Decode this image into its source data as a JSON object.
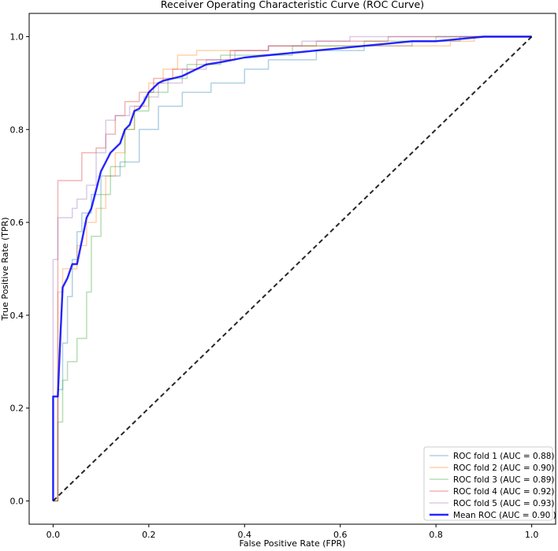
{
  "chart_data": {
    "type": "line",
    "title": "Receiver Operating Characteristic Curve (ROC Curve)",
    "xlabel": "False Positive Rate (FPR)",
    "ylabel": "True Positive Rate (TPR)",
    "xlim": [
      -0.05,
      1.05
    ],
    "ylim": [
      -0.05,
      1.05
    ],
    "xticks": [
      0.0,
      0.2,
      0.4,
      0.6,
      0.8,
      1.0
    ],
    "yticks": [
      0.0,
      0.2,
      0.4,
      0.6,
      0.8,
      1.0
    ],
    "xtick_labels": [
      "0.0",
      "0.2",
      "0.4",
      "0.6",
      "0.8",
      "1.0"
    ],
    "ytick_labels": [
      "0.0",
      "0.2",
      "0.4",
      "0.6",
      "0.8",
      "1.0"
    ],
    "grid": false,
    "legend_position": "lower-right",
    "series": [
      {
        "name": "ROC fold 1 (AUC = 0.88)",
        "color": "#1f77b4",
        "opacity": 0.35,
        "width": 1.5,
        "dash": "",
        "x": [
          0,
          0.01,
          0.01,
          0.02,
          0.02,
          0.03,
          0.03,
          0.04,
          0.04,
          0.05,
          0.05,
          0.06,
          0.06,
          0.08,
          0.08,
          0.1,
          0.1,
          0.14,
          0.14,
          0.18,
          0.18,
          0.22,
          0.22,
          0.27,
          0.27,
          0.33,
          0.33,
          0.4,
          0.4,
          0.45,
          0.45,
          0.55,
          0.55,
          0.65,
          0.65,
          0.75,
          0.75,
          0.85,
          0.85,
          1.0
        ],
        "y": [
          0,
          0,
          0.24,
          0.24,
          0.34,
          0.34,
          0.44,
          0.44,
          0.52,
          0.52,
          0.58,
          0.58,
          0.62,
          0.62,
          0.66,
          0.66,
          0.7,
          0.7,
          0.73,
          0.73,
          0.8,
          0.8,
          0.85,
          0.85,
          0.88,
          0.88,
          0.9,
          0.9,
          0.93,
          0.93,
          0.95,
          0.95,
          0.97,
          0.97,
          0.98,
          0.98,
          0.99,
          0.99,
          1.0,
          1.0
        ]
      },
      {
        "name": "ROC fold 2 (AUC = 0.90)",
        "color": "#ff7f0e",
        "opacity": 0.35,
        "width": 1.5,
        "dash": "",
        "x": [
          0,
          0.01,
          0.01,
          0.02,
          0.02,
          0.05,
          0.05,
          0.07,
          0.07,
          0.09,
          0.09,
          0.11,
          0.11,
          0.13,
          0.13,
          0.15,
          0.15,
          0.17,
          0.17,
          0.2,
          0.2,
          0.23,
          0.23,
          0.26,
          0.26,
          0.3,
          0.3,
          0.45,
          0.45,
          0.6,
          0.6,
          0.75,
          0.75,
          0.83,
          0.83,
          0.88,
          0.88,
          1.0
        ],
        "y": [
          0,
          0,
          0.45,
          0.45,
          0.5,
          0.5,
          0.55,
          0.55,
          0.6,
          0.6,
          0.63,
          0.63,
          0.7,
          0.7,
          0.75,
          0.75,
          0.8,
          0.8,
          0.85,
          0.85,
          0.9,
          0.9,
          0.93,
          0.93,
          0.96,
          0.96,
          0.97,
          0.97,
          0.98,
          0.98,
          0.98,
          0.98,
          0.98,
          0.98,
          0.99,
          0.99,
          1.0,
          1.0
        ]
      },
      {
        "name": "ROC fold 3 (AUC = 0.89)",
        "color": "#2ca02c",
        "opacity": 0.35,
        "width": 1.5,
        "dash": "",
        "x": [
          0,
          0.01,
          0.01,
          0.02,
          0.02,
          0.03,
          0.03,
          0.05,
          0.05,
          0.07,
          0.07,
          0.08,
          0.08,
          0.1,
          0.1,
          0.12,
          0.12,
          0.15,
          0.15,
          0.17,
          0.17,
          0.2,
          0.2,
          0.24,
          0.24,
          0.28,
          0.28,
          0.35,
          0.35,
          0.5,
          0.5,
          0.65,
          0.65,
          0.8,
          0.8,
          1.0
        ],
        "y": [
          0,
          0,
          0.17,
          0.17,
          0.26,
          0.26,
          0.3,
          0.3,
          0.35,
          0.35,
          0.45,
          0.45,
          0.57,
          0.57,
          0.66,
          0.66,
          0.72,
          0.72,
          0.8,
          0.8,
          0.84,
          0.84,
          0.88,
          0.88,
          0.91,
          0.91,
          0.94,
          0.94,
          0.96,
          0.96,
          0.98,
          0.98,
          0.99,
          0.99,
          1.0,
          1.0
        ]
      },
      {
        "name": "ROC fold 4 (AUC = 0.92)",
        "color": "#d62728",
        "opacity": 0.35,
        "width": 1.5,
        "dash": "",
        "x": [
          0,
          0.01,
          0.01,
          0.06,
          0.06,
          0.09,
          0.09,
          0.11,
          0.11,
          0.13,
          0.13,
          0.15,
          0.15,
          0.18,
          0.18,
          0.21,
          0.21,
          0.25,
          0.25,
          0.3,
          0.3,
          0.37,
          0.37,
          0.45,
          0.45,
          0.55,
          0.55,
          0.7,
          0.7,
          0.85,
          0.85,
          1.0
        ],
        "y": [
          0,
          0,
          0.69,
          0.69,
          0.75,
          0.75,
          0.76,
          0.76,
          0.79,
          0.79,
          0.83,
          0.83,
          0.86,
          0.86,
          0.88,
          0.88,
          0.91,
          0.91,
          0.93,
          0.93,
          0.95,
          0.95,
          0.97,
          0.97,
          0.98,
          0.98,
          0.99,
          0.99,
          1.0,
          1.0,
          1.0,
          1.0
        ]
      },
      {
        "name": "ROC fold 5 (AUC = 0.93)",
        "color": "#9467bd",
        "opacity": 0.35,
        "width": 1.5,
        "dash": "",
        "x": [
          0,
          0.0,
          0.0,
          0.01,
          0.01,
          0.04,
          0.04,
          0.05,
          0.05,
          0.07,
          0.07,
          0.09,
          0.09,
          0.11,
          0.11,
          0.13,
          0.13,
          0.16,
          0.16,
          0.19,
          0.19,
          0.22,
          0.22,
          0.27,
          0.27,
          0.32,
          0.32,
          0.38,
          0.38,
          0.45,
          0.45,
          0.52,
          0.52,
          0.62,
          0.62,
          0.75,
          0.75,
          0.88,
          0.88,
          1.0
        ],
        "y": [
          0,
          0,
          0.52,
          0.52,
          0.61,
          0.61,
          0.63,
          0.63,
          0.65,
          0.65,
          0.68,
          0.68,
          0.75,
          0.75,
          0.82,
          0.82,
          0.83,
          0.83,
          0.85,
          0.85,
          0.87,
          0.87,
          0.9,
          0.9,
          0.93,
          0.93,
          0.95,
          0.95,
          0.97,
          0.97,
          0.98,
          0.98,
          0.99,
          0.99,
          1.0,
          1.0,
          1.0,
          1.0,
          1.0,
          1.0
        ]
      },
      {
        "name": "Mean ROC (AUC = 0.90 )",
        "color": "#0000ff",
        "opacity": 0.85,
        "width": 2.4,
        "dash": "",
        "x": [
          0,
          0.0,
          0.01,
          0.015,
          0.02,
          0.03,
          0.04,
          0.05,
          0.06,
          0.07,
          0.08,
          0.09,
          0.1,
          0.11,
          0.12,
          0.13,
          0.14,
          0.15,
          0.16,
          0.17,
          0.18,
          0.19,
          0.2,
          0.21,
          0.22,
          0.23,
          0.25,
          0.27,
          0.3,
          0.32,
          0.35,
          0.4,
          0.45,
          0.5,
          0.55,
          0.6,
          0.65,
          0.7,
          0.75,
          0.8,
          0.85,
          0.9,
          0.95,
          1.0
        ],
        "y": [
          0,
          0.225,
          0.225,
          0.35,
          0.46,
          0.48,
          0.51,
          0.51,
          0.56,
          0.61,
          0.63,
          0.67,
          0.71,
          0.73,
          0.75,
          0.76,
          0.77,
          0.8,
          0.81,
          0.84,
          0.845,
          0.86,
          0.88,
          0.89,
          0.9,
          0.905,
          0.91,
          0.915,
          0.93,
          0.94,
          0.945,
          0.955,
          0.96,
          0.965,
          0.97,
          0.975,
          0.98,
          0.985,
          0.99,
          0.99,
          0.995,
          1.0,
          1.0,
          1.0
        ]
      },
      {
        "name": "chance",
        "color": "#000000",
        "opacity": 0.85,
        "width": 2,
        "dash": "6,4",
        "legend": false,
        "x": [
          0,
          1
        ],
        "y": [
          0,
          1
        ]
      }
    ]
  }
}
